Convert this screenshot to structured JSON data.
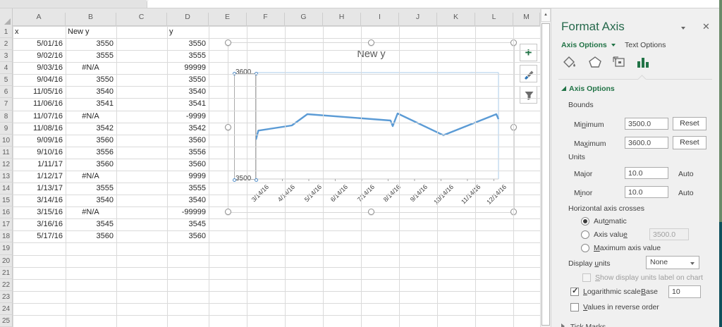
{
  "colors": {
    "excel_green": "#217346",
    "chart_line": "#5B9BD5",
    "plot_border_blue": "#A9CBEA",
    "selection_blue": "#4E8CC8",
    "panel_bg": "#F0F0F0",
    "edge_green": "#6A8A69",
    "edge_teal": "#0E505C"
  },
  "sheet": {
    "column_headers": [
      "A",
      "B",
      "C",
      "D",
      "E",
      "F",
      "G",
      "H",
      "I",
      "J",
      "K",
      "L",
      "M"
    ],
    "row_numbers": [
      "1",
      "2",
      "3",
      "4",
      "5",
      "6",
      "7",
      "8",
      "9",
      "10",
      "11",
      "12",
      "13",
      "14",
      "15",
      "16",
      "17",
      "18",
      "19",
      "20",
      "21",
      "22",
      "23",
      "24",
      "25"
    ],
    "rows": [
      {
        "a": "x",
        "b": "New y",
        "c": "",
        "d": "y"
      },
      {
        "a": "5/01/16",
        "b": "3550",
        "d": "3550"
      },
      {
        "a": "9/02/16",
        "b": "3555",
        "d": "3555"
      },
      {
        "a": "9/03/16",
        "b": "#N/A",
        "d": "99999"
      },
      {
        "a": "9/04/16",
        "b": "3550",
        "d": "3550"
      },
      {
        "a": "11/05/16",
        "b": "3540",
        "d": "3540"
      },
      {
        "a": "11/06/16",
        "b": "3541",
        "d": "3541"
      },
      {
        "a": "11/07/16",
        "b": "#N/A",
        "d": "-9999"
      },
      {
        "a": "11/08/16",
        "b": "3542",
        "d": "3542"
      },
      {
        "a": "9/09/16",
        "b": "3560",
        "d": "3560"
      },
      {
        "a": "9/10/16",
        "b": "3556",
        "d": "3556"
      },
      {
        "a": "1/11/17",
        "b": "3560",
        "d": "3560"
      },
      {
        "a": "1/12/17",
        "b": "#N/A",
        "d": "9999"
      },
      {
        "a": "1/13/17",
        "b": "3555",
        "d": "3555"
      },
      {
        "a": "3/14/16",
        "b": "3540",
        "d": "3540"
      },
      {
        "a": "3/15/16",
        "b": "#N/A",
        "d": "-99999"
      },
      {
        "a": "3/16/16",
        "b": "3545",
        "d": "3545"
      },
      {
        "a": "5/17/16",
        "b": "3560",
        "d": "3560"
      }
    ]
  },
  "chart_data": {
    "type": "line",
    "title": "New y",
    "x_ticks": [
      "3/14/16",
      "4/14/16",
      "5/14/16",
      "6/14/16",
      "7/14/16",
      "8/14/16",
      "9/14/16",
      "10/14/16",
      "11/14/16",
      "12/14/16"
    ],
    "y_ticks": [
      "3600",
      "3500"
    ],
    "ylim": [
      3500,
      3600
    ],
    "log_scale": true,
    "major_unit": 10,
    "legend": "none",
    "series": [
      {
        "name": "New y",
        "x": [
          "5/01/16",
          "9/02/16",
          "9/03/16",
          "9/04/16",
          "11/05/16",
          "11/06/16",
          "11/07/16",
          "11/08/16",
          "9/09/16",
          "9/10/16",
          "1/11/17",
          "1/12/17",
          "1/13/17",
          "3/14/16",
          "3/15/16",
          "3/16/16",
          "5/17/16"
        ],
        "values": [
          3550,
          3555,
          null,
          3550,
          3540,
          3541,
          null,
          3542,
          3560,
          3556,
          3560,
          null,
          3555,
          3540,
          null,
          3545,
          3560
        ]
      }
    ],
    "line_trace": [
      [
        0,
        0.63
      ],
      [
        0.01,
        0.545
      ],
      [
        0.148,
        0.497
      ],
      [
        0.212,
        0.391
      ],
      [
        0.555,
        0.45
      ],
      [
        0.564,
        0.503
      ],
      [
        0.584,
        0.384
      ],
      [
        0.773,
        0.589
      ],
      [
        0.991,
        0.391
      ],
      [
        1,
        0.437
      ]
    ]
  },
  "chart_ui": {
    "add_button_label": "+"
  },
  "panel": {
    "title": "Format Axis",
    "close_label": "✕",
    "tabs": {
      "axis_options": "Axis Options",
      "text_options": "Text Options"
    },
    "section_header": "Axis Options",
    "bounds": {
      "label": "Bounds",
      "minimum": [
        "Mi",
        "n",
        "imum"
      ],
      "maximum": [
        "Ma",
        "x",
        "imum"
      ],
      "min_value": "3500.0",
      "max_value": "3600.0",
      "reset": "Reset"
    },
    "units": {
      "label": "Units",
      "major": [
        "Ma",
        "j",
        "or"
      ],
      "minor": [
        "M",
        "i",
        "nor"
      ],
      "major_value": "10.0",
      "minor_value": "10.0",
      "auto": "Auto"
    },
    "crosses": {
      "label": "Horizontal axis crosses",
      "automatic": [
        "Aut",
        "o",
        "matic"
      ],
      "axis_value": [
        "Axis valu",
        "e",
        ""
      ],
      "axis_value_value": "3500.0",
      "max_axis_value": [
        "",
        "M",
        "aximum axis value"
      ]
    },
    "display_units": {
      "label": [
        "Display ",
        "u",
        "nits"
      ],
      "value": "None"
    },
    "show_display_units_label": [
      "",
      "S",
      "how display units label on chart"
    ],
    "logarithmic": {
      "label": [
        "",
        "L",
        "ogarithmic scale"
      ],
      "base_label": [
        "",
        "B",
        "ase"
      ],
      "base_value": "10"
    },
    "reverse_label": [
      "",
      "V",
      "alues in reverse order"
    ],
    "tick_marks_label": "Tick Marks"
  }
}
